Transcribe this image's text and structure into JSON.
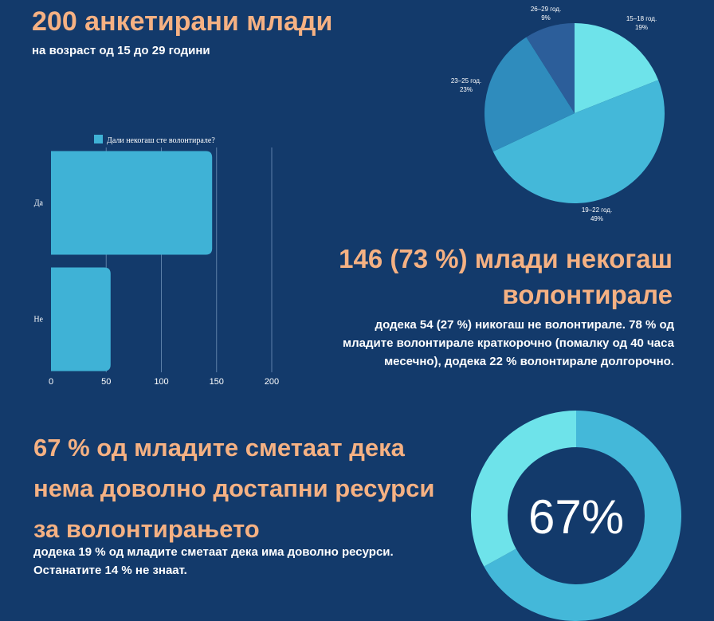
{
  "colors": {
    "background": "#133a6b",
    "accent": "#f5b183",
    "bar": "#3fb2d6",
    "grid": "#5c7fa8"
  },
  "header": {
    "title": "200 анкетирани млади",
    "subtitle": "на возраст од  15 до 29 години"
  },
  "volunteer_block": {
    "heading": "146 (73 %)  млади некогаш волонтирале",
    "body": "додека 54 (27 %) никогаш не волонтирале. 78 % од младите волонтирале краткорочно (помалку од 40 часа месечно), додека 22 % волонтирале долгорочно."
  },
  "resources_block": {
    "heading": "67 % од младите сметаат дека нема доволно достапни ресурси за волонтирањето",
    "body": "додека 19 % од младите сметаат дека има доволно ресурси. Останатите 14 % не знаат."
  },
  "chart_data": [
    {
      "type": "pie",
      "labels": [
        "15–18 год.",
        "19–22 год.",
        "23–25 год.",
        "26–29 год."
      ],
      "values": [
        19,
        49,
        23,
        9
      ],
      "value_labels": [
        "19%",
        "49%",
        "23%",
        "9%"
      ],
      "colors": [
        "#6ee3ea",
        "#44b8d9",
        "#2f8cbd",
        "#2c5e9a"
      ]
    },
    {
      "type": "bar",
      "orientation": "horizontal",
      "legend": "Дали некогаш сте волонтирале?",
      "categories": [
        "Да",
        "Не"
      ],
      "values": [
        146,
        54
      ],
      "xlim": [
        0,
        200
      ],
      "xticks": [
        0,
        50,
        100,
        150,
        200
      ],
      "grid": true,
      "legend_position": "top"
    },
    {
      "type": "pie",
      "donut": true,
      "center_label": "67%",
      "values": [
        67,
        33
      ],
      "colors": [
        "#44b8d9",
        "#6ee3ea"
      ]
    }
  ]
}
